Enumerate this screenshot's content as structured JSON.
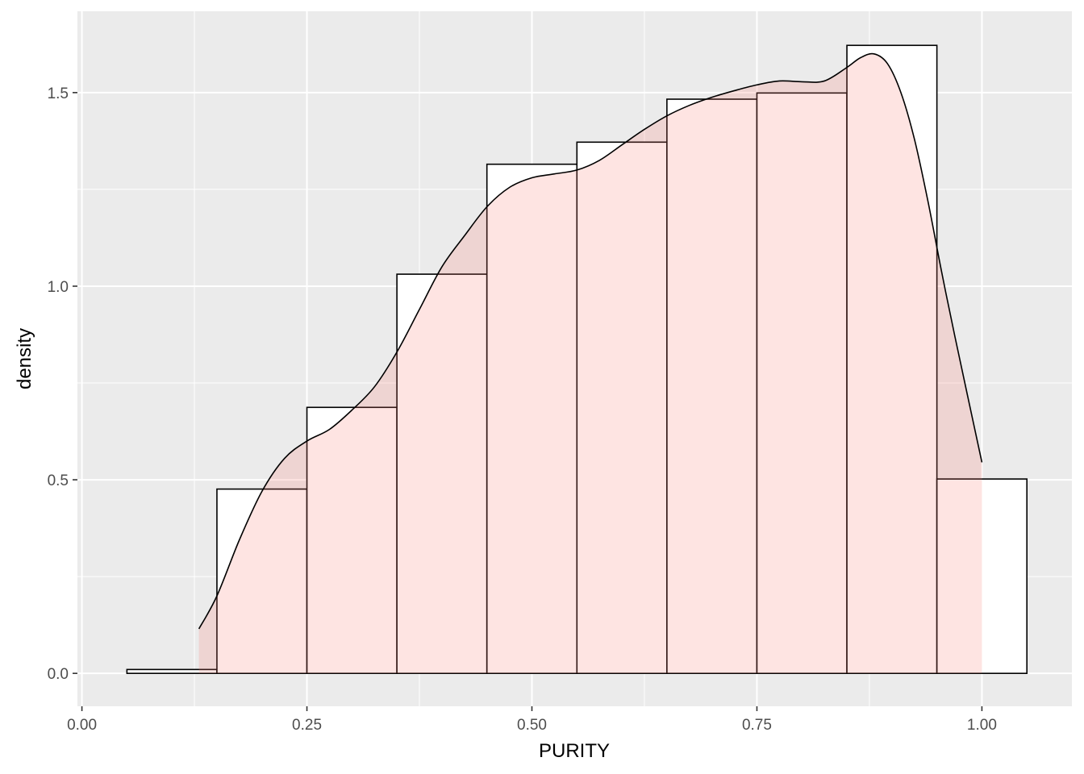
{
  "chart_data": {
    "type": "bar",
    "title": "",
    "xlabel": "PURITY",
    "ylabel": "density",
    "xlim": [
      -0.005,
      1.1
    ],
    "ylim": [
      -0.085,
      1.71
    ],
    "grid": true,
    "panel_background": "#ebebeb",
    "grid_color": "#ffffff",
    "x_ticks": [
      0.0,
      0.25,
      0.5,
      0.75,
      1.0
    ],
    "x_tick_labels": [
      "0.00",
      "0.25",
      "0.50",
      "0.75",
      "1.00"
    ],
    "y_ticks": [
      0.0,
      0.5,
      1.0,
      1.5
    ],
    "y_tick_labels": [
      "0.0",
      "0.5",
      "1.0",
      "1.5"
    ],
    "histogram": {
      "bin_width": 0.1,
      "bin_centers": [
        0.1,
        0.2,
        0.3,
        0.4,
        0.5,
        0.6,
        0.7,
        0.8,
        0.9,
        1.0
      ],
      "values": [
        0.01,
        0.476,
        0.687,
        1.031,
        1.315,
        1.372,
        1.483,
        1.499,
        1.622,
        0.502
      ],
      "fill": "#ffffff",
      "stroke": "#000000"
    },
    "density": {
      "x": [
        0.13,
        0.15,
        0.175,
        0.2,
        0.225,
        0.25,
        0.275,
        0.3,
        0.325,
        0.35,
        0.375,
        0.4,
        0.425,
        0.45,
        0.475,
        0.5,
        0.525,
        0.55,
        0.575,
        0.6,
        0.625,
        0.65,
        0.675,
        0.7,
        0.725,
        0.75,
        0.775,
        0.8,
        0.825,
        0.85,
        0.865,
        0.88,
        0.895,
        0.91,
        0.925,
        0.94,
        0.955,
        0.97,
        1.0
      ],
      "y": [
        0.115,
        0.2,
        0.345,
        0.47,
        0.555,
        0.6,
        0.63,
        0.68,
        0.74,
        0.83,
        0.94,
        1.05,
        1.13,
        1.205,
        1.255,
        1.28,
        1.29,
        1.3,
        1.325,
        1.365,
        1.405,
        1.44,
        1.467,
        1.488,
        1.505,
        1.52,
        1.53,
        1.528,
        1.53,
        1.565,
        1.59,
        1.6,
        1.575,
        1.5,
        1.38,
        1.22,
        1.04,
        0.87,
        0.545
      ],
      "fill": "#f8766d",
      "fill_opacity": 0.2,
      "stroke": "#000000"
    }
  }
}
